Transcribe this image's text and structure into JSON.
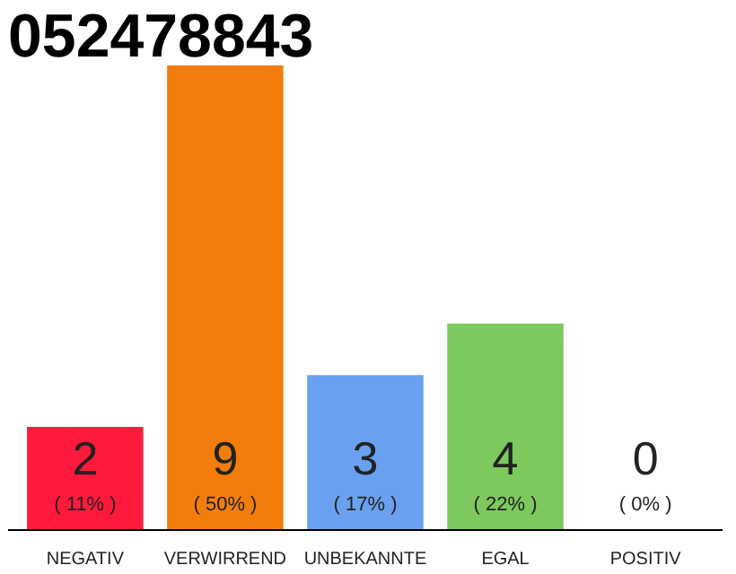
{
  "chart_data": {
    "type": "bar",
    "title": "052478843",
    "categories": [
      "NEGATIV",
      "VERWIRREND",
      "UNBEKANNTE",
      "EGAL",
      "POSITIV"
    ],
    "values": [
      2,
      9,
      3,
      4,
      0
    ],
    "colors": [
      "#ff1a3c",
      "#f27d0c",
      "#6aa0f0",
      "#7dc95e",
      "#bdbdbd"
    ],
    "value_labels": [
      "2\n( 11% )",
      "9\n( 50% )",
      "3\n( 17% )",
      "4\n( 22% )",
      "0\n( 0% )"
    ],
    "ylim": [
      0,
      9
    ],
    "tick_labels": "x",
    "grid": false
  }
}
